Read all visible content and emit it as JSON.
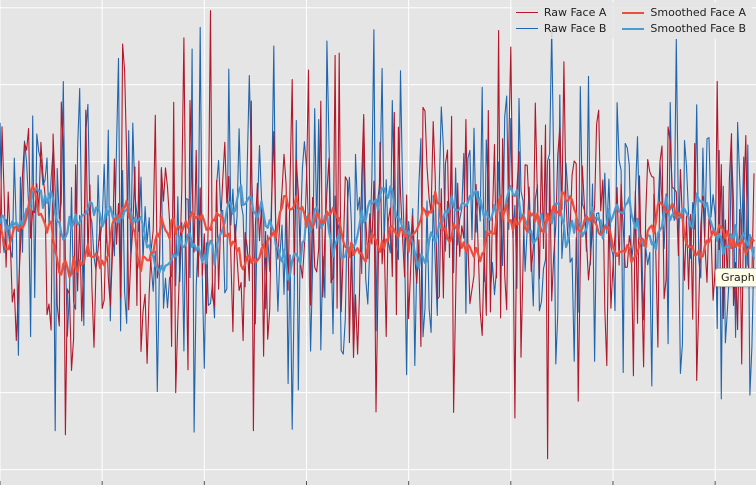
{
  "chart_data": {
    "type": "line",
    "grid": true,
    "legend_position": "top-right",
    "xlim": [
      0,
      370
    ],
    "ylim": [
      -4.2,
      2.1
    ],
    "y_major": [
      -4,
      -3,
      -2,
      -1,
      0,
      1,
      2
    ],
    "series": [
      {
        "name": "Raw Face A",
        "color": "#b2182b",
        "style": "thin",
        "seed": 11,
        "mean": -0.9,
        "amp": 1.05
      },
      {
        "name": "Raw Face B",
        "color": "#2166ac",
        "style": "thin",
        "seed": 29,
        "mean": -0.9,
        "amp": 1.0
      },
      {
        "name": "Smoothed Face A",
        "color": "#ef4d3c",
        "style": "thick"
      },
      {
        "name": "Smoothed Face B",
        "color": "#4a9bd1",
        "style": "thick"
      }
    ],
    "tooltip": "Graph"
  }
}
